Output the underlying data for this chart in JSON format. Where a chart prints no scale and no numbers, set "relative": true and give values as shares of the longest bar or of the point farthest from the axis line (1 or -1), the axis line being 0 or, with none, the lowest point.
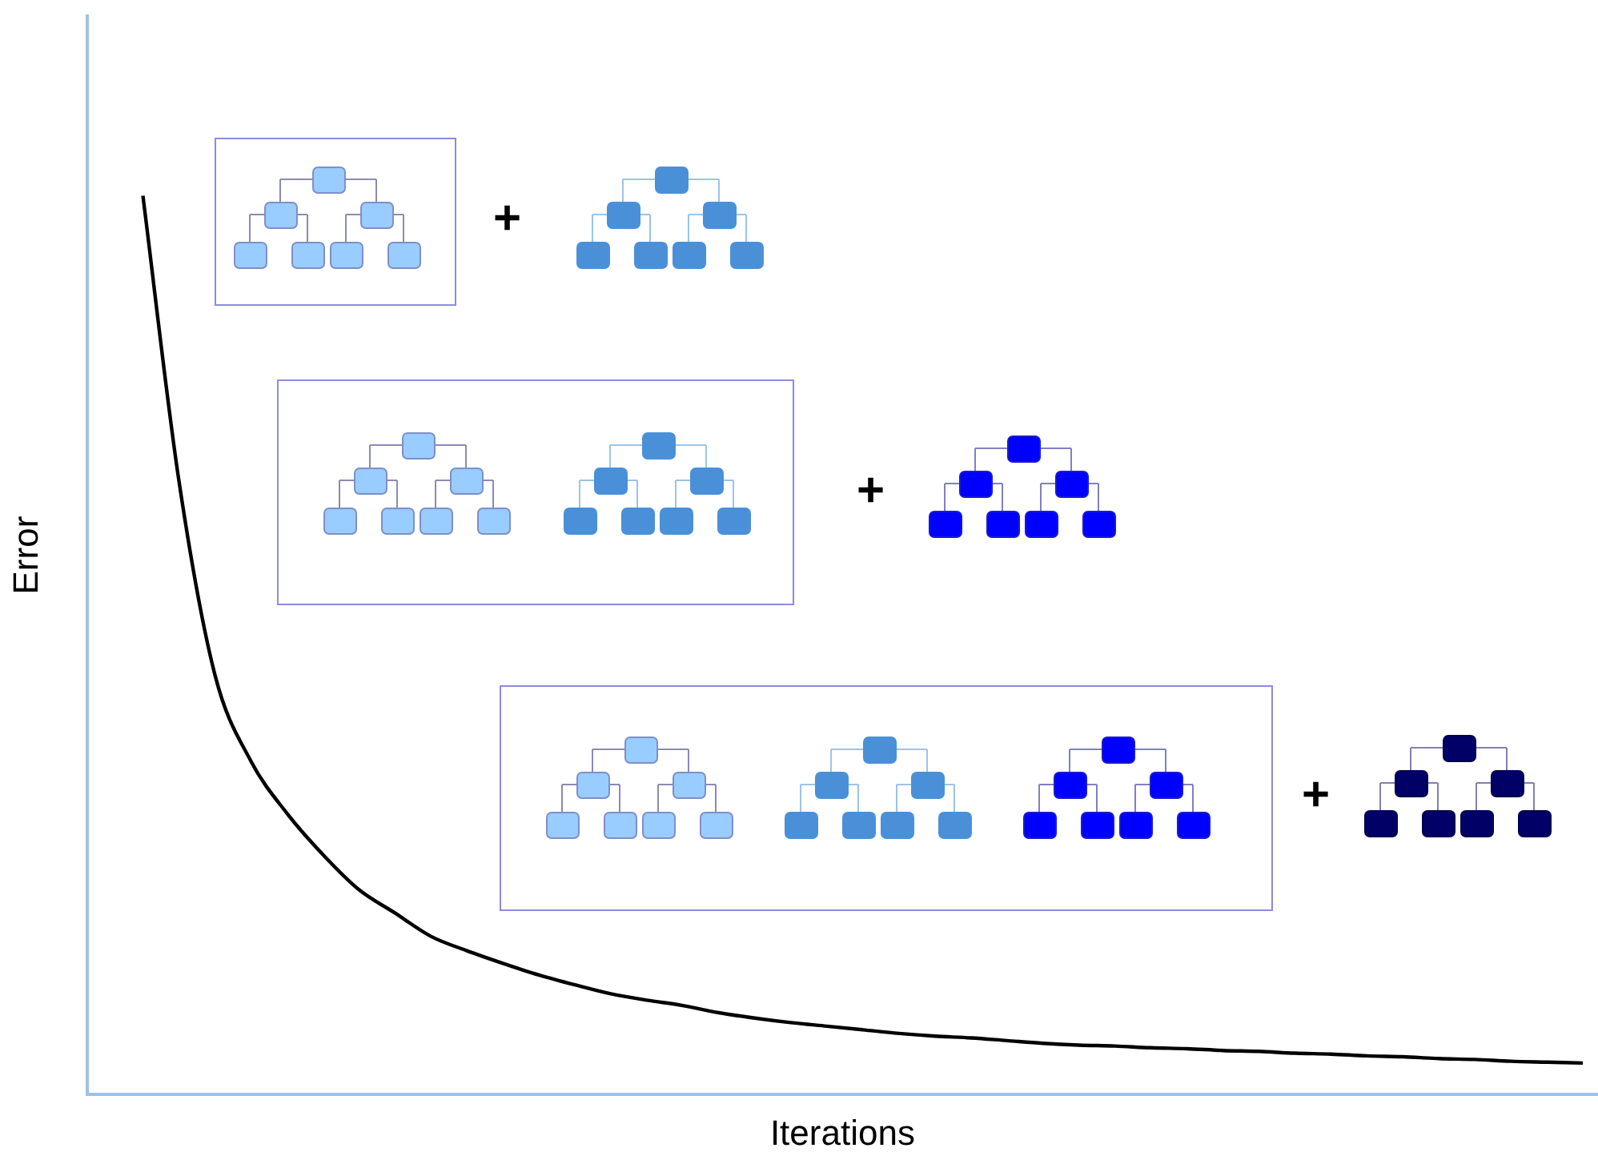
{
  "chart_data": {
    "type": "line",
    "xlabel": "Iterations",
    "ylabel": "Error",
    "relative": true,
    "categories": [
      null,
      null,
      null,
      null,
      null,
      null,
      null,
      null,
      null,
      null,
      null,
      null,
      null,
      null,
      null,
      null,
      null,
      null,
      null,
      null,
      null,
      null,
      null,
      null,
      null,
      null,
      null,
      null,
      null,
      null,
      null,
      null,
      null,
      null,
      null,
      null,
      null,
      null,
      null,
      null,
      null
    ],
    "series": [
      {
        "color": "#000000",
        "values": [
          1.0,
          0.683,
          0.467,
          0.371,
          0.313,
          0.267,
          0.228,
          0.202,
          0.176,
          0.16,
          0.146,
          0.133,
          0.122,
          0.112,
          0.105,
          0.099,
          0.091,
          0.085,
          0.08,
          0.076,
          0.072,
          0.068,
          0.065,
          0.063,
          0.06,
          0.057,
          0.055,
          0.054,
          0.052,
          0.051,
          0.049,
          0.048,
          0.046,
          0.045,
          0.043,
          0.042,
          0.04,
          0.039,
          0.037,
          0.036,
          0.035
        ]
      }
    ],
    "marker": "none",
    "legend": false,
    "grid": false,
    "tick_labels": false,
    "annotations": [
      "+",
      "+",
      "+"
    ]
  }
}
